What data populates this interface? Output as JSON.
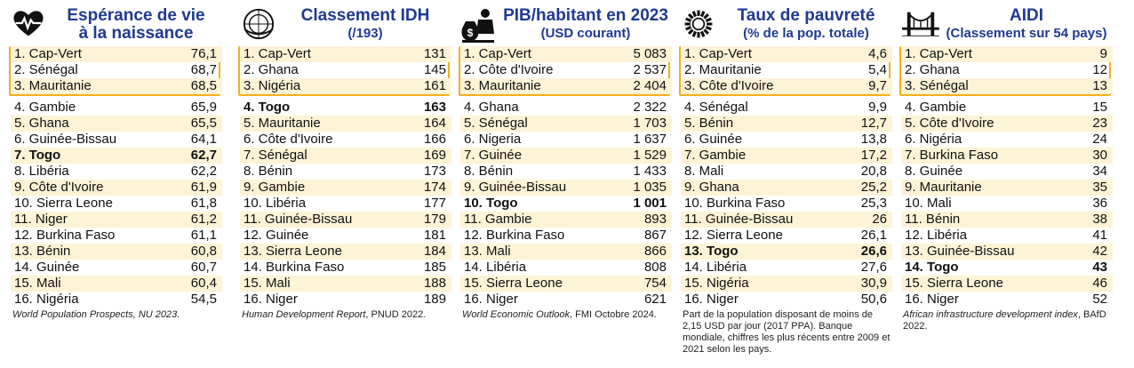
{
  "panels": [
    {
      "icon": "heart-pulse-icon",
      "title": "Espérance de vie",
      "subtitle": "à la naissance",
      "rows": [
        {
          "name": "1. Cap-Vert",
          "value": "76,1"
        },
        {
          "name": "2. Sénégal",
          "value": "68,7"
        },
        {
          "name": "3. Mauritanie",
          "value": "68,5"
        },
        {
          "name": "4. Gambie",
          "value": "65,9"
        },
        {
          "name": "5. Ghana",
          "value": "65,5"
        },
        {
          "name": "6. Guinée-Bissau",
          "value": "64,1"
        },
        {
          "name": "7. Togo",
          "value": "62,7",
          "bold": true
        },
        {
          "name": "8. Libéria",
          "value": "62,2"
        },
        {
          "name": "9. Côte d'Ivoire",
          "value": "61,9"
        },
        {
          "name": "10. Sierra Leone",
          "value": "61,8"
        },
        {
          "name": "11. Niger",
          "value": "61,2"
        },
        {
          "name": "12. Burkina Faso",
          "value": "61,1"
        },
        {
          "name": "13. Bénin",
          "value": "60,8"
        },
        {
          "name": "14. Guinée",
          "value": "60,7"
        },
        {
          "name": "15. Mali",
          "value": "60,4"
        },
        {
          "name": "16. Nigéria",
          "value": "54,5"
        }
      ],
      "source_italic": "World Population Prospects, NU 2023.",
      "source_plain": ""
    },
    {
      "icon": "un-emblem-icon",
      "title": "Classement IDH",
      "subtitle": "(/193)",
      "rows": [
        {
          "name": "1. Cap-Vert",
          "value": "131"
        },
        {
          "name": "2. Ghana",
          "value": "145"
        },
        {
          "name": "3. Nigéria",
          "value": "161"
        },
        {
          "name": "4. Togo",
          "value": "163",
          "bold": true
        },
        {
          "name": "5. Mauritanie",
          "value": "164"
        },
        {
          "name": "6. Côte d'Ivoire",
          "value": "166"
        },
        {
          "name": "7. Sénégal",
          "value": "169"
        },
        {
          "name": "8. Bénin",
          "value": "173"
        },
        {
          "name": "9. Gambie",
          "value": "174"
        },
        {
          "name": "10. Libéria",
          "value": "177"
        },
        {
          "name": "11. Guinée-Bissau",
          "value": "179"
        },
        {
          "name": "12. Guinée",
          "value": "181"
        },
        {
          "name": "13. Sierra Leone",
          "value": "184"
        },
        {
          "name": "14. Burkina Faso",
          "value": "185"
        },
        {
          "name": "15. Mali",
          "value": "188"
        },
        {
          "name": "16. Niger",
          "value": "189"
        }
      ],
      "source_italic": "Human Development Report",
      "source_plain": ", PNUD 2022."
    },
    {
      "icon": "money-bag-person-icon",
      "title": "PIB/habitant en 2023",
      "subtitle": "(USD courant)",
      "rows": [
        {
          "name": "1. Cap-Vert",
          "value": "5 083"
        },
        {
          "name": "2. Côte d'Ivoire",
          "value": "2 537"
        },
        {
          "name": "3. Mauritanie",
          "value": "2 404"
        },
        {
          "name": "4. Ghana",
          "value": "2 322"
        },
        {
          "name": "5. Sénégal",
          "value": "1 703"
        },
        {
          "name": "6. Nigeria",
          "value": "1 637"
        },
        {
          "name": "7. Guinée",
          "value": "1 529"
        },
        {
          "name": "8. Bénin",
          "value": "1 433"
        },
        {
          "name": "9. Guinée-Bissau",
          "value": "1 035"
        },
        {
          "name": "10. Togo",
          "value": "1 001",
          "bold": true
        },
        {
          "name": "11. Gambie",
          "value": "893"
        },
        {
          "name": "12. Burkina Faso",
          "value": "867"
        },
        {
          "name": "13. Mali",
          "value": "866"
        },
        {
          "name": "14. Libéria",
          "value": "808"
        },
        {
          "name": "15. Sierra Leone",
          "value": "754"
        },
        {
          "name": "16. Niger",
          "value": "621"
        }
      ],
      "source_italic": "World Economic Outlook",
      "source_plain": ", FMI Octobre 2024."
    },
    {
      "icon": "poverty-sun-icon",
      "title": "Taux de pauvreté",
      "subtitle": "(% de la pop. totale)",
      "rows": [
        {
          "name": "1. Cap-Vert",
          "value": "4,6"
        },
        {
          "name": "2. Mauritanie",
          "value": "5,4"
        },
        {
          "name": "3. Côte d'Ivoire",
          "value": "9,7"
        },
        {
          "name": "4. Sénégal",
          "value": "9,9"
        },
        {
          "name": "5. Bénin",
          "value": "12,7"
        },
        {
          "name": "6. Guinée",
          "value": "13,8"
        },
        {
          "name": "7. Gambie",
          "value": "17,2"
        },
        {
          "name": "8. Mali",
          "value": "20,8"
        },
        {
          "name": "9. Ghana",
          "value": "25,2"
        },
        {
          "name": "10. Burkina Faso",
          "value": "25,3"
        },
        {
          "name": "11. Guinée-Bissau",
          "value": "26"
        },
        {
          "name": "12. Sierra Leone",
          "value": "26,1"
        },
        {
          "name": "13. Togo",
          "value": "26,6",
          "bold": true
        },
        {
          "name": "14. Libéria",
          "value": "27,6"
        },
        {
          "name": "15. Nigéria",
          "value": "30,9"
        },
        {
          "name": "16. Niger",
          "value": "50,6"
        }
      ],
      "source_italic": "",
      "source_plain": "Part de la population disposant de moins de 2,15 USD par jour (2017 PPA). Banque mondiale, chiffres les plus récents entre 2009 et 2021 selon les pays."
    },
    {
      "icon": "bridge-icon",
      "title": "AIDI",
      "subtitle": "(Classement sur 54 pays)",
      "rows": [
        {
          "name": "1. Cap-Vert",
          "value": "9"
        },
        {
          "name": "2. Ghana",
          "value": "12"
        },
        {
          "name": "3. Sénégal",
          "value": "13"
        },
        {
          "name": "4. Gambie",
          "value": "15"
        },
        {
          "name": "5. Côte d'Ivoire",
          "value": "23"
        },
        {
          "name": "6. Nigéria",
          "value": "24"
        },
        {
          "name": "7. Burkina Faso",
          "value": "30"
        },
        {
          "name": "8. Guinée",
          "value": "34"
        },
        {
          "name": "9. Mauritanie",
          "value": "35"
        },
        {
          "name": "10. Mali",
          "value": "36"
        },
        {
          "name": "11. Bénin",
          "value": "38"
        },
        {
          "name": "12. Libéria",
          "value": "41"
        },
        {
          "name": "13. Guinée-Bissau",
          "value": "42"
        },
        {
          "name": "14. Togo",
          "value": "43",
          "bold": true
        },
        {
          "name": "15. Sierra Leone",
          "value": "46"
        },
        {
          "name": "16. Niger",
          "value": "52"
        }
      ],
      "source_italic": "African infrastructure development index",
      "source_plain": ", BAfD 2022."
    }
  ],
  "colors": {
    "title": "#1f3a93",
    "highlight_box": "#f3b01c",
    "odd_row": "#fdf3d7"
  }
}
